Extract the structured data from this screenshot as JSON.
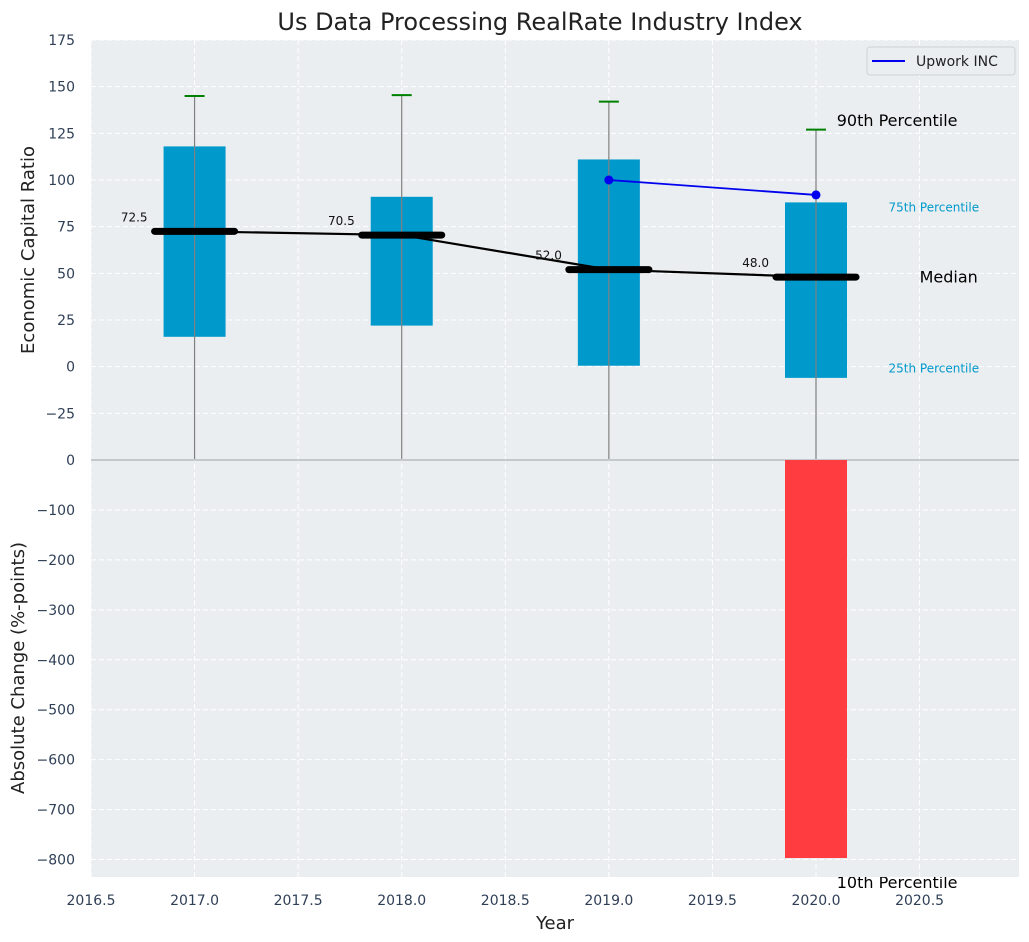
{
  "chart_data": [
    {
      "type": "bar",
      "panel": "top",
      "title": "Us Data Processing RealRate Industry Index",
      "xlabel": "",
      "ylabel": "Economic Capital Ratio",
      "xlim": [
        2016.5,
        2020.98
      ],
      "ylim": [
        -50,
        175
      ],
      "yticks": [
        175,
        150,
        125,
        100,
        75,
        50,
        25,
        0,
        -25
      ],
      "ytick_labels": [
        "175",
        "150",
        "125",
        "100",
        "75",
        "50",
        "25",
        "0",
        "−25"
      ],
      "grid": true,
      "categories": [
        2017,
        2018,
        2019,
        2020
      ],
      "boxes": [
        {
          "x": 2017,
          "p25": 16,
          "p75": 118,
          "median": 72.5,
          "p90": 145
        },
        {
          "x": 2018,
          "p25": 22,
          "p75": 91,
          "median": 70.5,
          "p90": 145.5
        },
        {
          "x": 2019,
          "p25": 0.5,
          "p75": 111,
          "median": 52.0,
          "p90": 142
        },
        {
          "x": 2020,
          "p25": -6,
          "p75": 88,
          "median": 48.0,
          "p90": 127
        }
      ],
      "median_labels": [
        "72.5",
        "70.5",
        "52.0",
        "48.0"
      ],
      "series": [
        {
          "name": "Upwork INC",
          "x": [
            2019,
            2020
          ],
          "values": [
            100,
            92
          ],
          "color": "#0000ee"
        }
      ],
      "annotations": [
        {
          "text": "90th Percentile",
          "x": 2020.1,
          "y": 129,
          "color": "#000000",
          "size": "large"
        },
        {
          "text": "75th Percentile",
          "x": 2020.35,
          "y": 83,
          "color": "#0099cc",
          "size": "small"
        },
        {
          "text": "Median",
          "x": 2020.5,
          "y": 45,
          "color": "#000000",
          "size": "large"
        },
        {
          "text": "25th Percentile",
          "x": 2020.35,
          "y": -3,
          "color": "#0099cc",
          "size": "small"
        }
      ],
      "legend": {
        "position": "top-right",
        "entries": [
          "Upwork INC"
        ]
      },
      "colors": {
        "box": "#0099cc",
        "median": "#000000",
        "whisker": "#808080",
        "cap": "#008000",
        "background": "#eaeef0"
      }
    },
    {
      "type": "bar",
      "panel": "bottom",
      "xlabel": "Year",
      "ylabel": "Absolute Change (%-points)",
      "xlim": [
        2016.5,
        2020.98
      ],
      "ylim": [
        -835,
        0
      ],
      "xticks": [
        2016.5,
        2017.0,
        2017.5,
        2018.0,
        2018.5,
        2019.0,
        2019.5,
        2020.0,
        2020.5
      ],
      "xtick_labels": [
        "2016.5",
        "2017.0",
        "2017.5",
        "2018.0",
        "2018.5",
        "2019.0",
        "2019.5",
        "2020.0",
        "2020.5"
      ],
      "yticks": [
        0,
        -100,
        -200,
        -300,
        -400,
        -500,
        -600,
        -700,
        -800
      ],
      "ytick_labels": [
        "0",
        "−100",
        "−200",
        "−300",
        "−400",
        "−500",
        "−600",
        "−700",
        "−800"
      ],
      "grid": true,
      "categories": [
        2020
      ],
      "values": [
        -797
      ],
      "annotations": [
        {
          "text": "10th Percentile",
          "x": 2020.1,
          "y": -845,
          "color": "#000000",
          "note": "partially clipped"
        }
      ],
      "colors": {
        "bar": "#ff3c40",
        "background": "#eaeef0"
      }
    }
  ]
}
